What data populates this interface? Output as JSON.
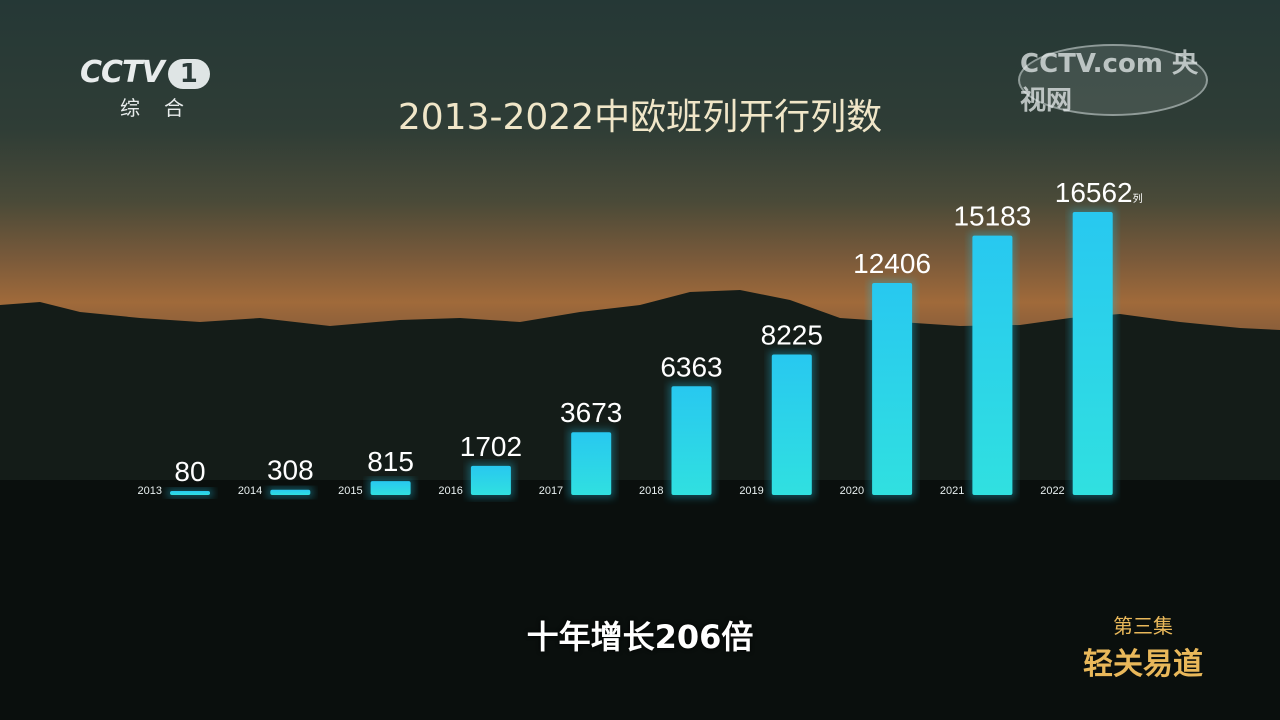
{
  "channel_logo": {
    "name": "CCTV",
    "number": "1",
    "subtitle": "综合"
  },
  "watermark": "CCTV.com 央视网",
  "episode": {
    "number": "第三集",
    "title": "轻关易道"
  },
  "caption": "十年增长206倍",
  "colors": {
    "bar": "#2fd8e8",
    "title": "#f0e6c8",
    "episode": "#e9b85a"
  },
  "chart_data": {
    "type": "bar",
    "title": "2013-2022中欧班列开行列数",
    "categories": [
      "2013",
      "2014",
      "2015",
      "2016",
      "2017",
      "2018",
      "2019",
      "2020",
      "2021",
      "2022"
    ],
    "values": [
      80,
      308,
      815,
      1702,
      3673,
      6363,
      8225,
      12406,
      15183,
      16562
    ],
    "unit": "列",
    "xlabel": "",
    "ylabel": "",
    "ylim": [
      0,
      16562
    ],
    "grid": false,
    "legend": "none"
  }
}
